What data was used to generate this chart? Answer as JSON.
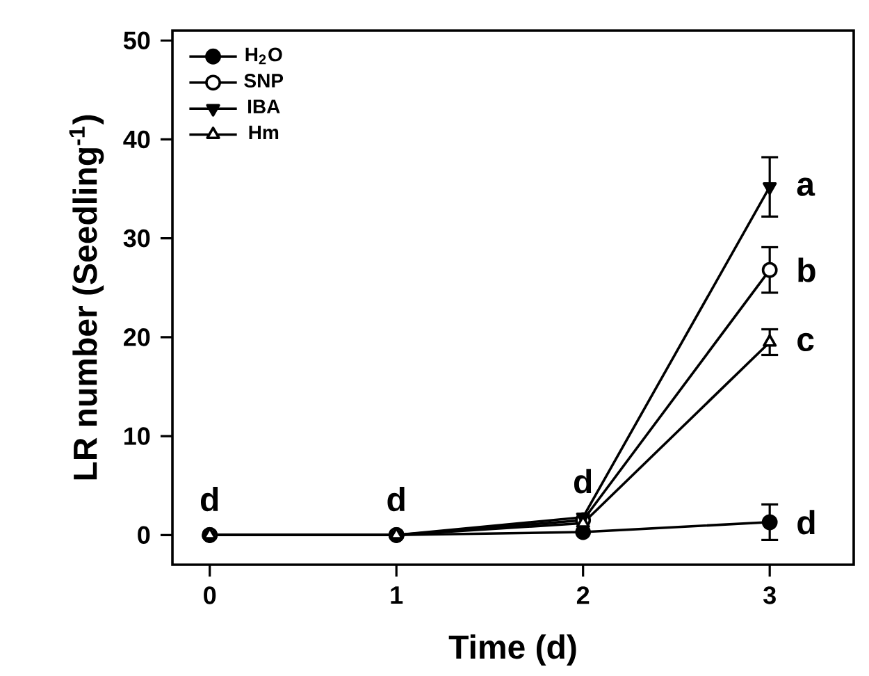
{
  "chart_data": {
    "type": "line",
    "xlabel": "Time (d)",
    "ylabel": "LR number (Seedling$^{-1}$)",
    "x": [
      0,
      1,
      2,
      3
    ],
    "xlim": [
      -0.2,
      3.45
    ],
    "ylim": [
      -3,
      51
    ],
    "xticks": [
      0,
      1,
      2,
      3
    ],
    "yticks": [
      0,
      10,
      20,
      30,
      40,
      50
    ],
    "grid": false,
    "legend": "top left",
    "line_style": "solid",
    "series": [
      {
        "name": "H$_{2}$O",
        "color": "#000000",
        "marker": "circle",
        "values": [
          0,
          0,
          0.3,
          1.3
        ],
        "errors": [
          null,
          null,
          null,
          1.8
        ]
      },
      {
        "name": "SNP",
        "color": "#ffffff",
        "marker": "circle",
        "values": [
          0,
          0,
          1.5,
          26.8
        ],
        "errors": [
          null,
          null,
          null,
          2.3
        ]
      },
      {
        "name": "IBA",
        "color": "#000000",
        "marker": "triangle-down",
        "values": [
          0,
          0,
          1.8,
          35.2
        ],
        "errors": [
          null,
          null,
          null,
          3
        ]
      },
      {
        "name": "Hm",
        "color": "#ffffff",
        "marker": "triangle",
        "values": [
          0,
          0,
          1.2,
          19.5
        ],
        "errors": [
          null,
          null,
          null,
          1.3
        ]
      }
    ],
    "annotations": [
      {
        "text": "d",
        "x": 0,
        "y": 0
      },
      {
        "text": "d",
        "x": 1,
        "y": 0
      },
      {
        "text": "d",
        "x": 2,
        "y": 1.8
      },
      {
        "text": "a",
        "x": 3,
        "y": 35.2
      },
      {
        "text": "b",
        "x": 3,
        "y": 26.8
      },
      {
        "text": "c",
        "x": 3,
        "y": 19.5
      },
      {
        "text": "d",
        "x": 3,
        "y": 1.3
      }
    ]
  }
}
